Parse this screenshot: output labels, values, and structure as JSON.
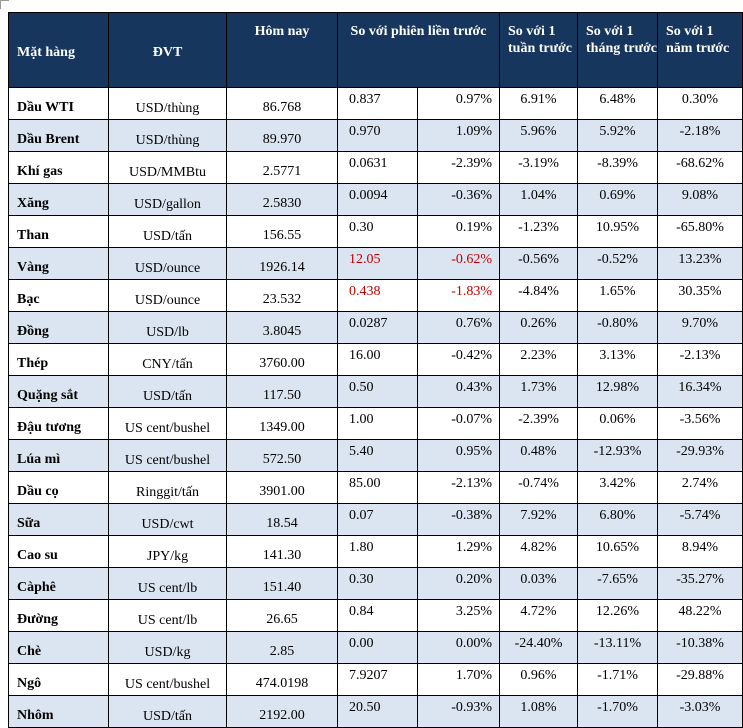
{
  "header": {
    "mat_hang": "Mặt hàng",
    "dvt": "ĐVT",
    "hom_nay": "Hôm nay",
    "so_voi_phien": "So với phiên liền trước",
    "so_voi_tuan": "So với 1 tuần trước",
    "so_voi_thang": "So với 1 tháng trước",
    "so_voi_nam": "So với 1 năm trước"
  },
  "rows": [
    {
      "name": "Dầu WTI",
      "unit": "USD/thùng",
      "today": "86.768",
      "abs": "0.837",
      "pct": "0.97%",
      "week": "6.91%",
      "month": "6.48%",
      "year": "0.30%",
      "highlight": false
    },
    {
      "name": "Dầu Brent",
      "unit": "USD/thùng",
      "today": "89.970",
      "abs": "0.970",
      "pct": "1.09%",
      "week": "5.96%",
      "month": "5.92%",
      "year": "-2.18%",
      "highlight": false
    },
    {
      "name": "Khí gas",
      "unit": "USD/MMBtu",
      "today": "2.5771",
      "abs": "0.0631",
      "pct": "-2.39%",
      "week": "-3.19%",
      "month": "-8.39%",
      "year": "-68.62%",
      "highlight": false
    },
    {
      "name": "Xăng",
      "unit": "USD/gallon",
      "today": "2.5830",
      "abs": "0.0094",
      "pct": "-0.36%",
      "week": "1.04%",
      "month": "0.69%",
      "year": "9.08%",
      "highlight": false
    },
    {
      "name": "Than",
      "unit": "USD/tấn",
      "today": "156.55",
      "abs": "0.30",
      "pct": "0.19%",
      "week": "-1.23%",
      "month": "10.95%",
      "year": "-65.80%",
      "highlight": false
    },
    {
      "name": "Vàng",
      "unit": "USD/ounce",
      "today": "1926.14",
      "abs": "12.05",
      "pct": "-0.62%",
      "week": "-0.56%",
      "month": "-0.52%",
      "year": "13.23%",
      "highlight": true
    },
    {
      "name": "Bạc",
      "unit": "USD/ounce",
      "today": "23.532",
      "abs": "0.438",
      "pct": "-1.83%",
      "week": "-4.84%",
      "month": "1.65%",
      "year": "30.35%",
      "highlight": true
    },
    {
      "name": "Đồng",
      "unit": "USD/lb",
      "today": "3.8045",
      "abs": "0.0287",
      "pct": "0.76%",
      "week": "0.26%",
      "month": "-0.80%",
      "year": "9.70%",
      "highlight": false
    },
    {
      "name": "Thép",
      "unit": "CNY/tấn",
      "today": "3760.00",
      "abs": "16.00",
      "pct": "-0.42%",
      "week": "2.23%",
      "month": "3.13%",
      "year": "-2.13%",
      "highlight": false
    },
    {
      "name": "Quặng sắt",
      "unit": "USD/tấn",
      "today": "117.50",
      "abs": "0.50",
      "pct": "0.43%",
      "week": "1.73%",
      "month": "12.98%",
      "year": "16.34%",
      "highlight": false
    },
    {
      "name": "Đậu tương",
      "unit": "US cent/bushel",
      "today": "1349.00",
      "abs": "1.00",
      "pct": "-0.07%",
      "week": "-2.39%",
      "month": "0.06%",
      "year": "-3.56%",
      "highlight": false
    },
    {
      "name": "Lúa mì",
      "unit": "US cent/bushel",
      "today": "572.50",
      "abs": "5.40",
      "pct": "0.95%",
      "week": "0.48%",
      "month": "-12.93%",
      "year": "-29.93%",
      "highlight": false
    },
    {
      "name": "Dầu cọ",
      "unit": "Ringgit/tấn",
      "today": "3901.00",
      "abs": "85.00",
      "pct": "-2.13%",
      "week": "-0.74%",
      "month": "3.42%",
      "year": "2.74%",
      "highlight": false
    },
    {
      "name": "Sữa",
      "unit": "USD/cwt",
      "today": "18.54",
      "abs": "0.07",
      "pct": "-0.38%",
      "week": "7.92%",
      "month": "6.80%",
      "year": "-5.74%",
      "highlight": false
    },
    {
      "name": "Cao su",
      "unit": "JPY/kg",
      "today": "141.30",
      "abs": "1.80",
      "pct": "1.29%",
      "week": "4.82%",
      "month": "10.65%",
      "year": "8.94%",
      "highlight": false
    },
    {
      "name": "Càphê",
      "unit": "US cent/lb",
      "today": "151.40",
      "abs": "0.30",
      "pct": "0.20%",
      "week": "0.03%",
      "month": "-7.65%",
      "year": "-35.27%",
      "highlight": false
    },
    {
      "name": "Đường",
      "unit": "US cent/lb",
      "today": "26.65",
      "abs": "0.84",
      "pct": "3.25%",
      "week": "4.72%",
      "month": "12.26%",
      "year": "48.22%",
      "highlight": false
    },
    {
      "name": "Chè",
      "unit": "USD/kg",
      "today": "2.85",
      "abs": "0.00",
      "pct": "0.00%",
      "week": "-24.40%",
      "month": "-13.11%",
      "year": "-10.38%",
      "highlight": false
    },
    {
      "name": "Ngô",
      "unit": "US cent/bushel",
      "today": "474.0198",
      "abs": "7.9207",
      "pct": "1.70%",
      "week": "0.96%",
      "month": "-1.71%",
      "year": "-29.88%",
      "highlight": false
    },
    {
      "name": "Nhôm",
      "unit": "USD/tấn",
      "today": "2192.00",
      "abs": "20.50",
      "pct": "-0.93%",
      "week": "1.08%",
      "month": "-1.70%",
      "year": "-3.03%",
      "highlight": false
    }
  ],
  "colors": {
    "header_bg": "#17365d",
    "stripe": "#dbe5f1",
    "highlight": "#c00000"
  }
}
